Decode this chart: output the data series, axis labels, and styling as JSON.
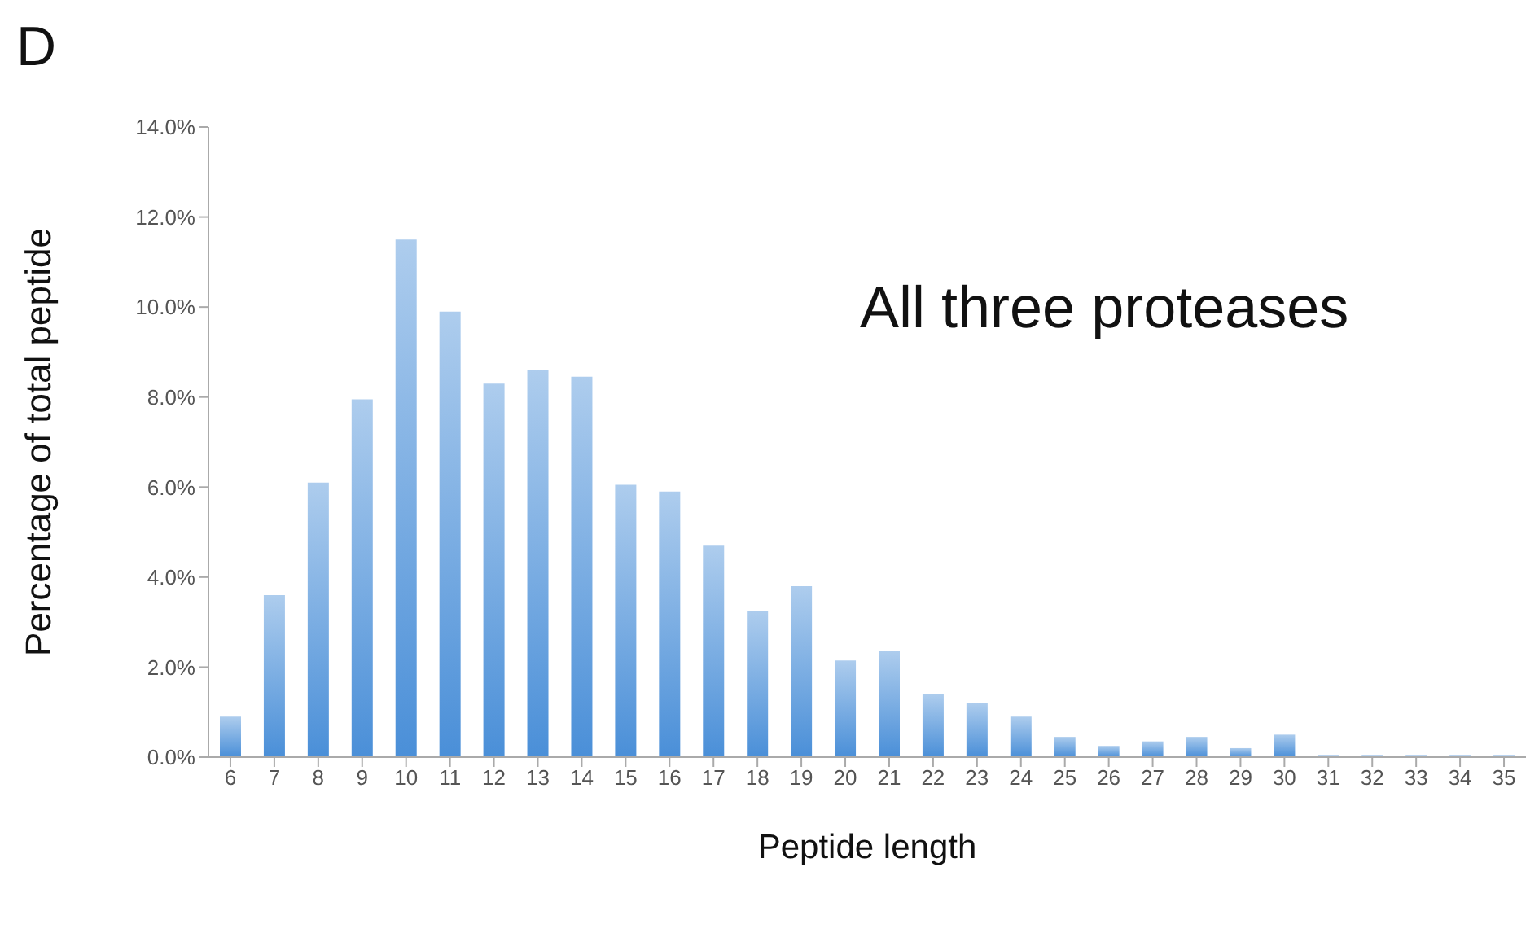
{
  "chart_data": {
    "type": "bar",
    "xlabel": "Peptide length",
    "ylabel": "Percentage of total peptide",
    "annotations": [
      "D",
      "All three proteases"
    ],
    "categories": [
      "6",
      "7",
      "8",
      "9",
      "10",
      "11",
      "12",
      "13",
      "14",
      "15",
      "16",
      "17",
      "18",
      "19",
      "20",
      "21",
      "22",
      "23",
      "24",
      "25",
      "26",
      "27",
      "28",
      "29",
      "30",
      "31",
      "32",
      "33",
      "34",
      "35"
    ],
    "values": [
      0.9,
      3.6,
      6.1,
      7.95,
      11.5,
      9.9,
      8.3,
      8.6,
      8.45,
      6.05,
      5.9,
      4.7,
      3.25,
      3.8,
      2.15,
      2.35,
      1.4,
      1.2,
      0.9,
      0.45,
      0.25,
      0.35,
      0.45,
      0.2,
      0.5,
      0.05,
      0.05,
      0.05,
      0.05,
      0.05
    ],
    "color": "#4a8fd8",
    "ylim": [
      0,
      14
    ],
    "yticks": [
      {
        "value": 0,
        "label": "0.0%"
      },
      {
        "value": 2,
        "label": "2.0%"
      },
      {
        "value": 4,
        "label": "4.0%"
      },
      {
        "value": 6,
        "label": "6.0%"
      },
      {
        "value": 8,
        "label": "8.0%"
      },
      {
        "value": 10,
        "label": "10.0%"
      },
      {
        "value": 12,
        "label": "12.0%"
      },
      {
        "value": 14,
        "label": "14.0%"
      }
    ],
    "grid": false,
    "legend": false
  }
}
